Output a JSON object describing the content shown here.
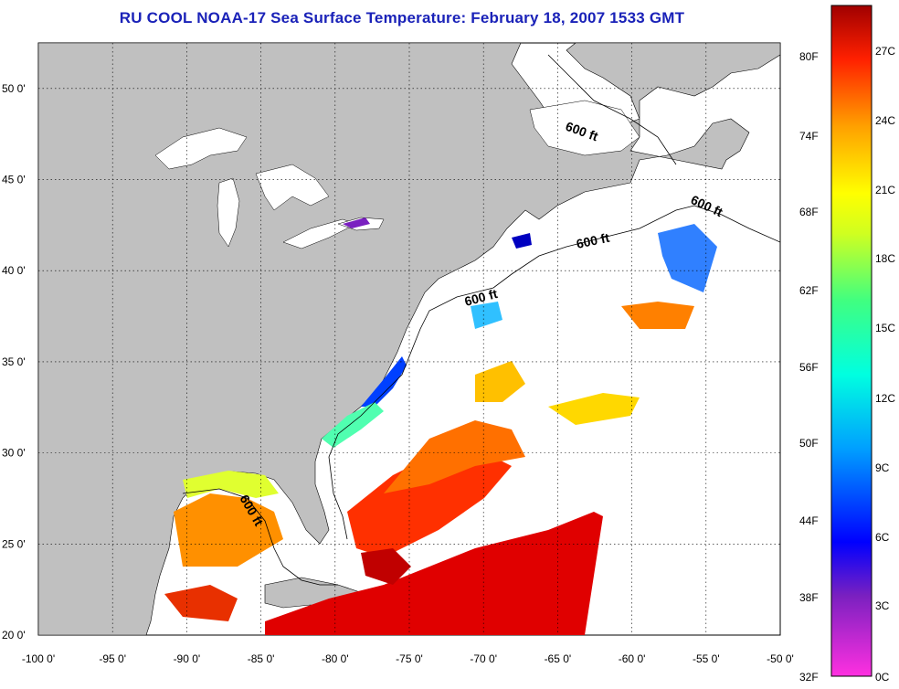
{
  "title": "RU COOL  NOAA-17  Sea Surface Temperature:  February 18, 2007 1533 GMT",
  "map": {
    "lon_range": [
      -100,
      -50
    ],
    "lat_range": [
      20,
      52.5
    ],
    "lon_ticks": [
      "-100 0'",
      "-95 0'",
      "-90 0'",
      "-85 0'",
      "-80 0'",
      "-75 0'",
      "-70 0'",
      "-65 0'",
      "-60 0'",
      "-55 0'",
      "-50 0'"
    ],
    "lat_ticks": [
      "20 0'",
      "25 0'",
      "30 0'",
      "35 0'",
      "40 0'",
      "45 0'",
      "50 0'"
    ],
    "land_color": "#c0c0c0",
    "isobath_labels": [
      "600 ft",
      "600 ft",
      "600 ft",
      "600 ft",
      "600 ft"
    ]
  },
  "colorbar": {
    "fahrenheit_labels": [
      "80F",
      "74F",
      "68F",
      "62F",
      "56F",
      "50F",
      "44F",
      "38F",
      "32F"
    ],
    "celsius_labels": [
      "27C",
      "24C",
      "21C",
      "18C",
      "15C",
      "12C",
      "9C",
      "6C",
      "3C",
      "0C"
    ]
  }
}
